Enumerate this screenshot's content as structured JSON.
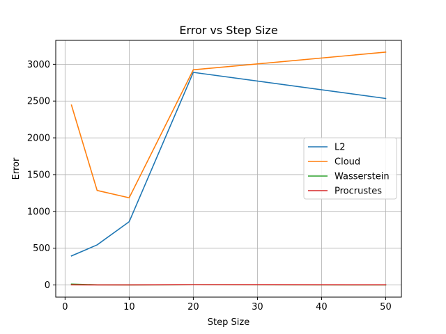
{
  "chart_data": {
    "type": "line",
    "title": "Error vs Step Size",
    "xlabel": "Step Size",
    "ylabel": "Error",
    "xlim": [
      -1.45,
      52.45
    ],
    "ylim": [
      -165,
      3325
    ],
    "xticks": [
      0,
      10,
      20,
      30,
      40,
      50
    ],
    "yticks": [
      0,
      500,
      1000,
      1500,
      2000,
      2500,
      3000
    ],
    "grid": true,
    "legend_position": "center-right",
    "x": [
      1,
      5,
      10,
      20,
      50
    ],
    "series": [
      {
        "name": "L2",
        "color": "#1f77b4",
        "values": [
          395,
          545,
          860,
          2890,
          2535
        ]
      },
      {
        "name": "Cloud",
        "color": "#ff7f0e",
        "values": [
          2445,
          1285,
          1185,
          2925,
          3165
        ]
      },
      {
        "name": "Wasserstein",
        "color": "#2ca02c",
        "values": [
          12,
          2,
          1,
          3,
          1
        ]
      },
      {
        "name": "Procrustes",
        "color": "#d62728",
        "values": [
          2,
          1,
          1,
          4,
          2
        ]
      }
    ]
  }
}
